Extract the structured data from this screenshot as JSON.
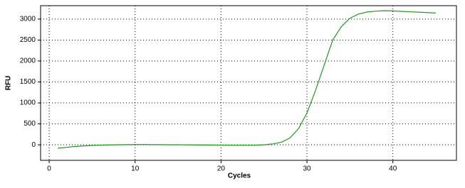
{
  "chart_data": {
    "type": "line",
    "x_label": "Cycles",
    "y_label": "RFU",
    "x": [
      1,
      2,
      3,
      4,
      5,
      6,
      7,
      8,
      9,
      10,
      11,
      12,
      13,
      14,
      15,
      16,
      17,
      18,
      19,
      20,
      21,
      22,
      23,
      24,
      25,
      26,
      27,
      28,
      29,
      30,
      31,
      32,
      33,
      34,
      35,
      36,
      37,
      38,
      39,
      40,
      41,
      42,
      43,
      44,
      45
    ],
    "series": [
      {
        "color": "#1f9a1f",
        "values": [
          -80,
          -60,
          -40,
          -25,
          -15,
          -8,
          -2,
          2,
          5,
          6,
          6,
          5,
          4,
          3,
          2,
          0,
          -2,
          -4,
          -6,
          -8,
          -10,
          -10,
          -10,
          -8,
          0,
          20,
          60,
          160,
          380,
          760,
          1300,
          1900,
          2500,
          2820,
          3020,
          3120,
          3170,
          3190,
          3200,
          3195,
          3185,
          3175,
          3165,
          3155,
          3145
        ]
      }
    ],
    "xlim": [
      -1,
      47.4
    ],
    "ylim": [
      -370,
      3320
    ],
    "xticks": [
      0,
      10,
      20,
      30,
      40
    ],
    "yticks": [
      0,
      500,
      1000,
      1500,
      2000,
      2500,
      3000
    ],
    "grid": true
  }
}
